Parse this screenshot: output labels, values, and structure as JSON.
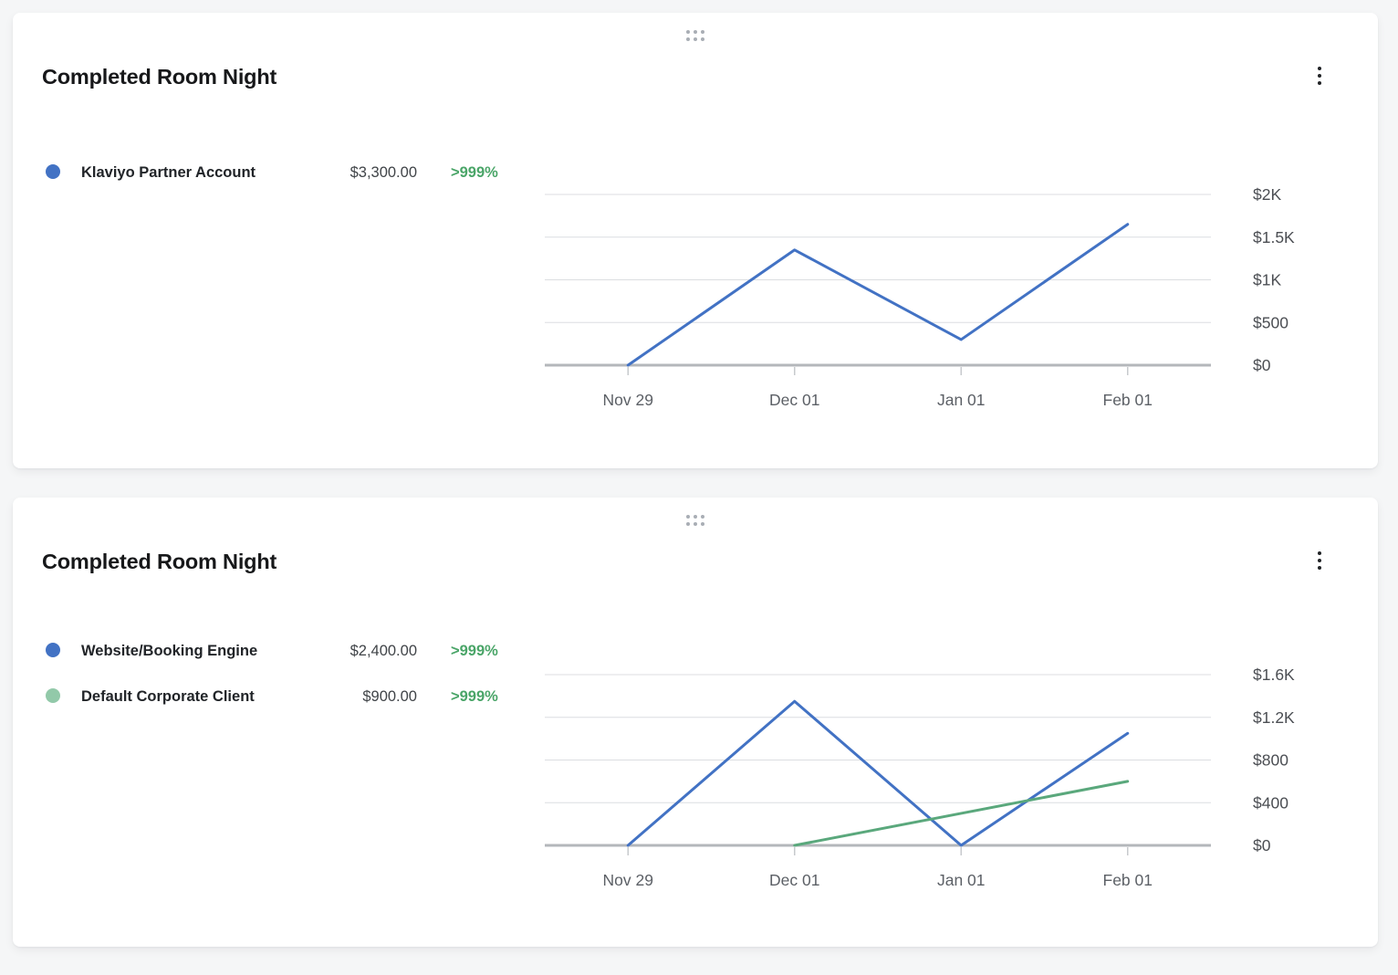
{
  "theme": {
    "page_bg": "#f5f6f7",
    "card_bg": "#ffffff",
    "positive_change_color": "#4aa568",
    "gridline_color": "#dcdee1",
    "axis_line_color": "#b4b7bb",
    "tick_color": "#c7cacd"
  },
  "icons": {
    "drag_handle": "drag-handle-icon",
    "card_menu": "kebab-menu-icon"
  },
  "cards": [
    {
      "title": "Completed Room Night",
      "legend": [
        {
          "label": "Klaviyo Partner Account",
          "value": "$3,300.00",
          "change": ">999%",
          "dot_color": "#4272c4"
        }
      ],
      "chart_data": {
        "type": "line",
        "title": "Completed Room Night",
        "categories": [
          "Nov 29",
          "Dec 01",
          "Jan 01",
          "Feb 01"
        ],
        "y_ticks": [
          "$2K",
          "$1.5K",
          "$1K",
          "$500",
          "$0"
        ],
        "y_tick_values": [
          2000,
          1500,
          1000,
          500,
          0
        ],
        "ylim": [
          0,
          2000
        ],
        "grid": true,
        "legend_position": "left",
        "series": [
          {
            "name": "Klaviyo Partner Account",
            "color": "#4272c4",
            "values": [
              0,
              1350,
              300,
              1650
            ]
          }
        ]
      }
    },
    {
      "title": "Completed Room Night",
      "legend": [
        {
          "label": "Website/Booking Engine",
          "value": "$2,400.00",
          "change": ">999%",
          "dot_color": "#4272c4"
        },
        {
          "label": "Default Corporate Client",
          "value": "$900.00",
          "change": ">999%",
          "dot_color": "#92c9a9"
        }
      ],
      "chart_data": {
        "type": "line",
        "title": "Completed Room Night",
        "categories": [
          "Nov 29",
          "Dec 01",
          "Jan 01",
          "Feb 01"
        ],
        "y_ticks": [
          "$1.6K",
          "$1.2K",
          "$800",
          "$400",
          "$0"
        ],
        "y_tick_values": [
          1600,
          1200,
          800,
          400,
          0
        ],
        "ylim": [
          0,
          1600
        ],
        "grid": true,
        "legend_position": "left",
        "series": [
          {
            "name": "Website/Booking Engine",
            "color": "#4272c4",
            "values": [
              0,
              1350,
              0,
              1050
            ]
          },
          {
            "name": "Default Corporate Client",
            "color": "#5aa87c",
            "values": [
              null,
              0,
              300,
              600
            ]
          }
        ]
      }
    }
  ]
}
